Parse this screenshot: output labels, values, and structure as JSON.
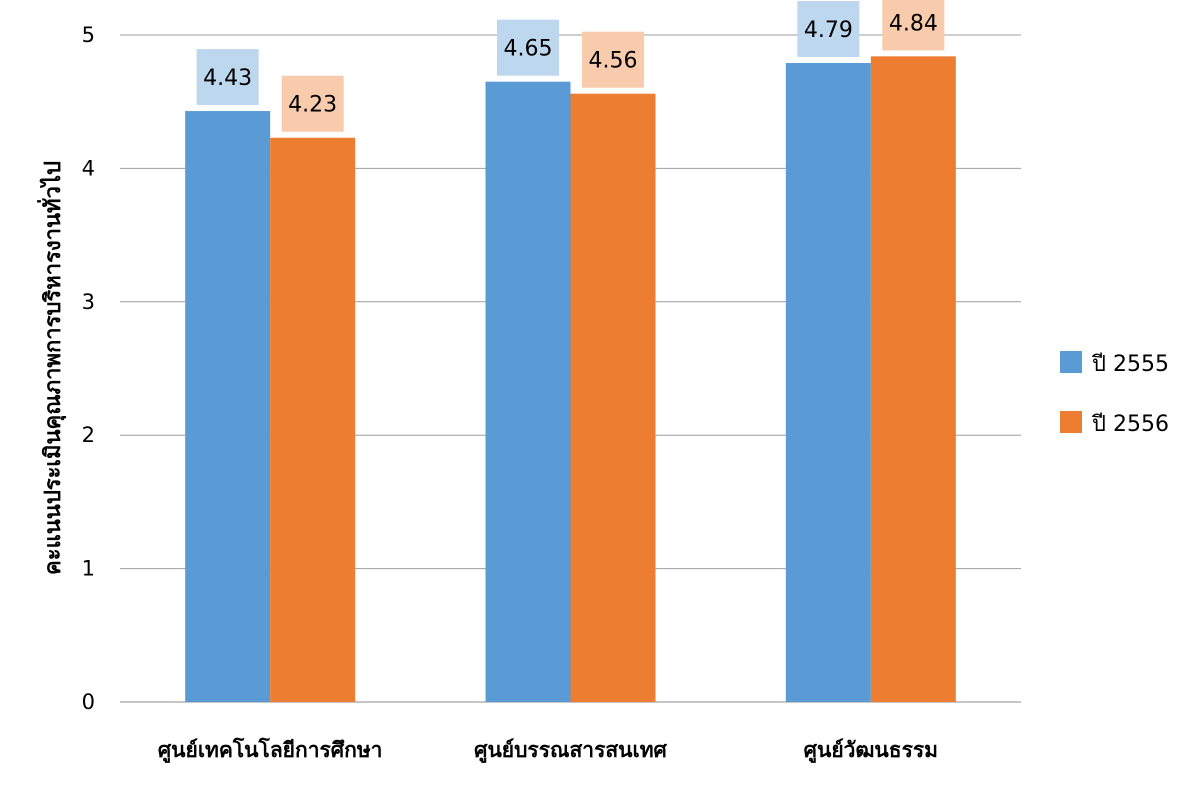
{
  "chart_data": {
    "type": "bar",
    "title": "",
    "xlabel": "",
    "ylabel": "คะแนนประเมินคุณภาพการบริหารงานทั่วไป",
    "ylim": [
      0,
      5
    ],
    "yticks": [
      0,
      1,
      2,
      3,
      4,
      5
    ],
    "grid": true,
    "legend_position": "right",
    "categories": [
      "ศูนย์เทคโนโลยีการศึกษา",
      "ศูนย์บรรณสารสนเทศ",
      "ศูนย์วัฒนธรรม"
    ],
    "series": [
      {
        "name": "ปี 2555",
        "color": "#5b9bd5",
        "label_bg": "#bdd7ee",
        "values": [
          4.43,
          4.65,
          4.79
        ]
      },
      {
        "name": "ปี 2556",
        "color": "#ed7d31",
        "label_bg": "#f8cbad",
        "values": [
          4.23,
          4.56,
          4.84
        ]
      }
    ]
  }
}
